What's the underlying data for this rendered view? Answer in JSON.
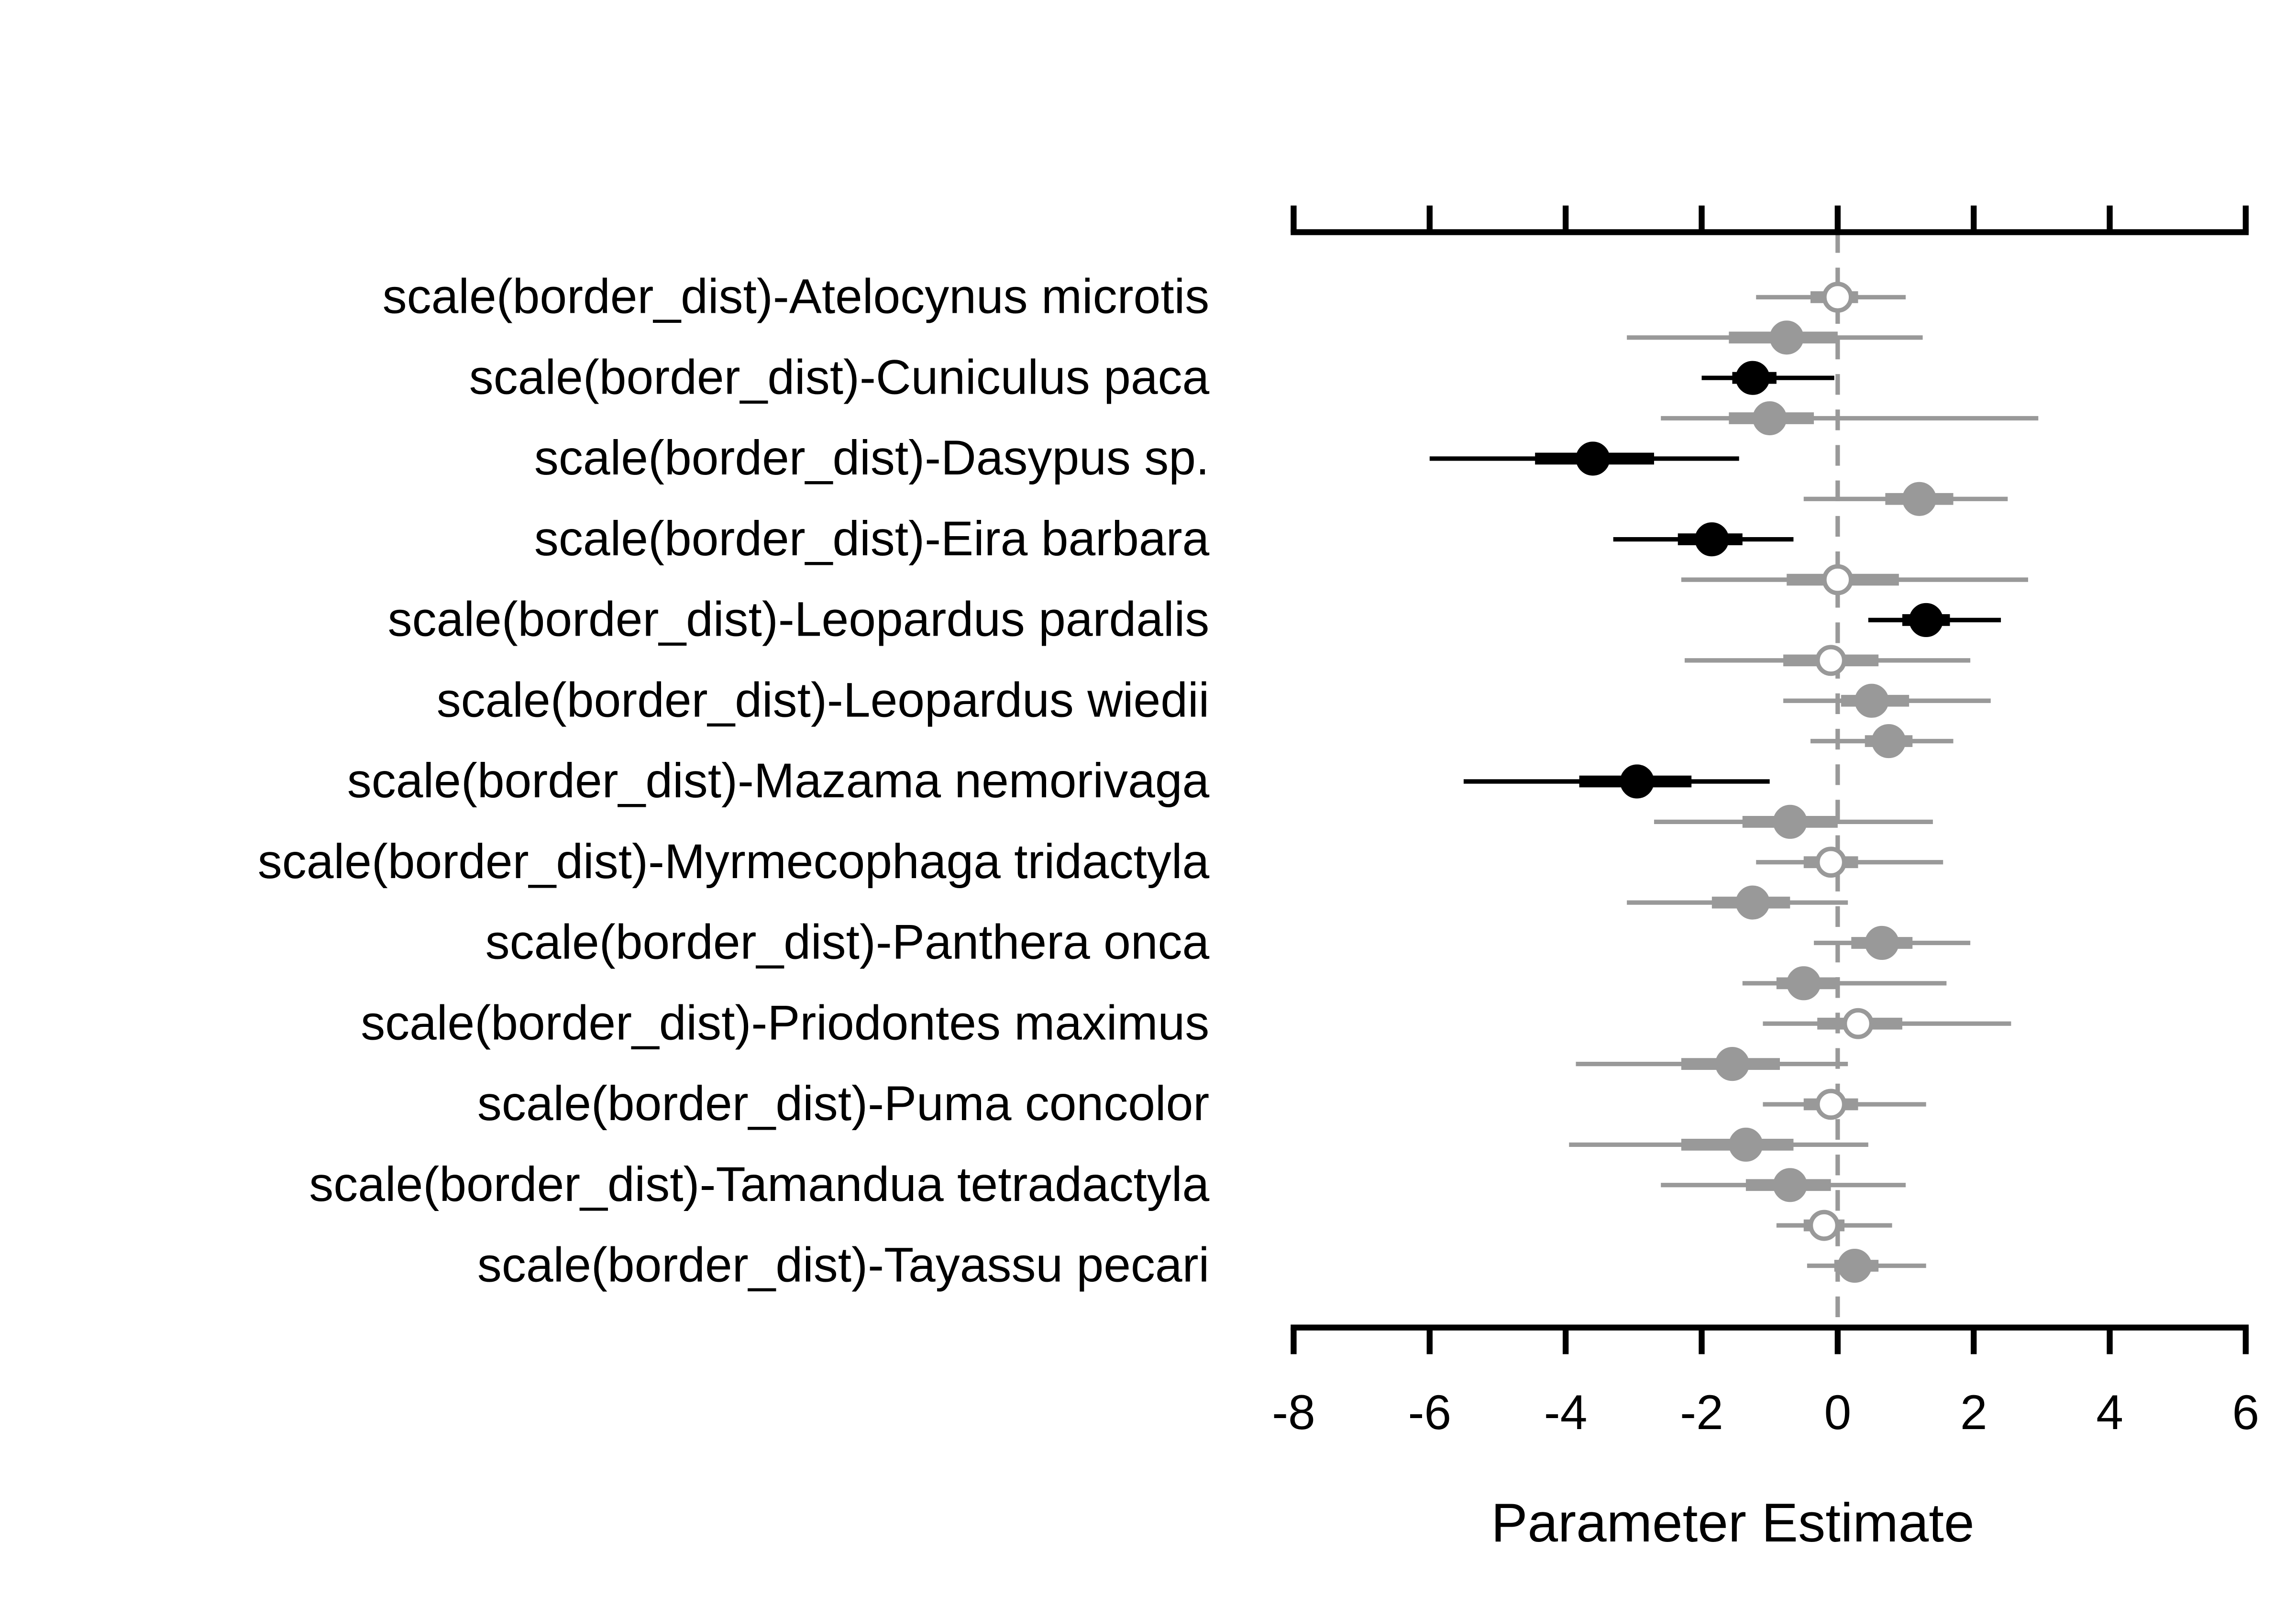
{
  "chart_data": {
    "type": "forest",
    "x_label": "Parameter Estimate",
    "categories": [
      "scale(border_dist)-Atelocynus microtis",
      null,
      "scale(border_dist)-Cuniculus paca",
      null,
      "scale(border_dist)-Dasypus sp.",
      null,
      "scale(border_dist)-Eira barbara",
      null,
      "scale(border_dist)-Leopardus pardalis",
      null,
      "scale(border_dist)-Leopardus wiedii",
      null,
      "scale(border_dist)-Mazama nemorivaga",
      null,
      "scale(border_dist)-Myrmecophaga tridactyla",
      null,
      "scale(border_dist)-Panthera onca",
      null,
      "scale(border_dist)-Priodontes maximus",
      null,
      "scale(border_dist)-Puma concolor",
      null,
      "scale(border_dist)-Tamandua tetradactyla",
      null,
      "scale(border_dist)-Tayassu pecari"
    ],
    "values": [
      0,
      -0.75,
      -1.25,
      -1.0,
      -3.6,
      1.2,
      -1.85,
      0,
      1.3,
      -0.1,
      0.5,
      0.75,
      -2.95,
      -0.7,
      -0.1,
      -1.25,
      0.65,
      -0.5,
      0.3,
      -1.55,
      -0.1,
      -1.35,
      -0.7,
      -0.2,
      0.25
    ],
    "lower": [
      -1.2,
      -3.1,
      -2.0,
      -2.6,
      -6.0,
      -0.5,
      -3.3,
      -2.3,
      0.45,
      -2.25,
      -0.8,
      -0.4,
      -5.5,
      -2.7,
      -1.2,
      -3.1,
      -0.35,
      -1.4,
      -1.1,
      -3.85,
      -1.1,
      -3.95,
      -2.6,
      -0.9,
      -0.45
    ],
    "upper": [
      1.0,
      1.25,
      -0.05,
      2.95,
      -1.45,
      2.5,
      -0.65,
      2.8,
      2.4,
      1.95,
      2.25,
      1.7,
      -1.0,
      1.4,
      1.55,
      0.15,
      1.95,
      1.6,
      2.55,
      0.15,
      1.3,
      0.45,
      1.0,
      0.8,
      1.3
    ],
    "lower_inner": [
      -0.4,
      -1.6,
      -1.55,
      -1.6,
      -4.45,
      0.7,
      -2.35,
      -0.75,
      0.95,
      -0.8,
      0.05,
      0.4,
      -3.8,
      -1.4,
      -0.5,
      -1.85,
      0.2,
      -0.9,
      -0.3,
      -2.3,
      -0.5,
      -2.3,
      -1.35,
      -0.5,
      -0.05
    ],
    "upper_inner": [
      0.3,
      0,
      -0.9,
      -0.35,
      -2.7,
      1.7,
      -1.4,
      0.9,
      1.65,
      0.6,
      1.05,
      1.1,
      -2.15,
      0,
      0.3,
      -0.7,
      1.1,
      0,
      0.95,
      -0.85,
      0.3,
      -0.65,
      -0.1,
      0.1,
      0.6
    ],
    "colors": [
      "#999999",
      "#999999",
      "#000000",
      "#999999",
      "#000000",
      "#999999",
      "#000000",
      "#999999",
      "#000000",
      "#999999",
      "#999999",
      "#999999",
      "#000000",
      "#999999",
      "#999999",
      "#999999",
      "#999999",
      "#999999",
      "#999999",
      "#999999",
      "#999999",
      "#999999",
      "#999999",
      "#999999",
      "#999999"
    ],
    "filled": [
      false,
      true,
      true,
      true,
      true,
      true,
      true,
      false,
      true,
      false,
      true,
      true,
      true,
      true,
      false,
      true,
      true,
      true,
      false,
      true,
      false,
      true,
      true,
      false,
      true
    ],
    "xlim": [
      -8,
      6
    ],
    "xticks": [
      -8,
      -6,
      -4,
      -2,
      0,
      2,
      4,
      6
    ],
    "reference_line": 0,
    "reference_color": "#999999"
  }
}
